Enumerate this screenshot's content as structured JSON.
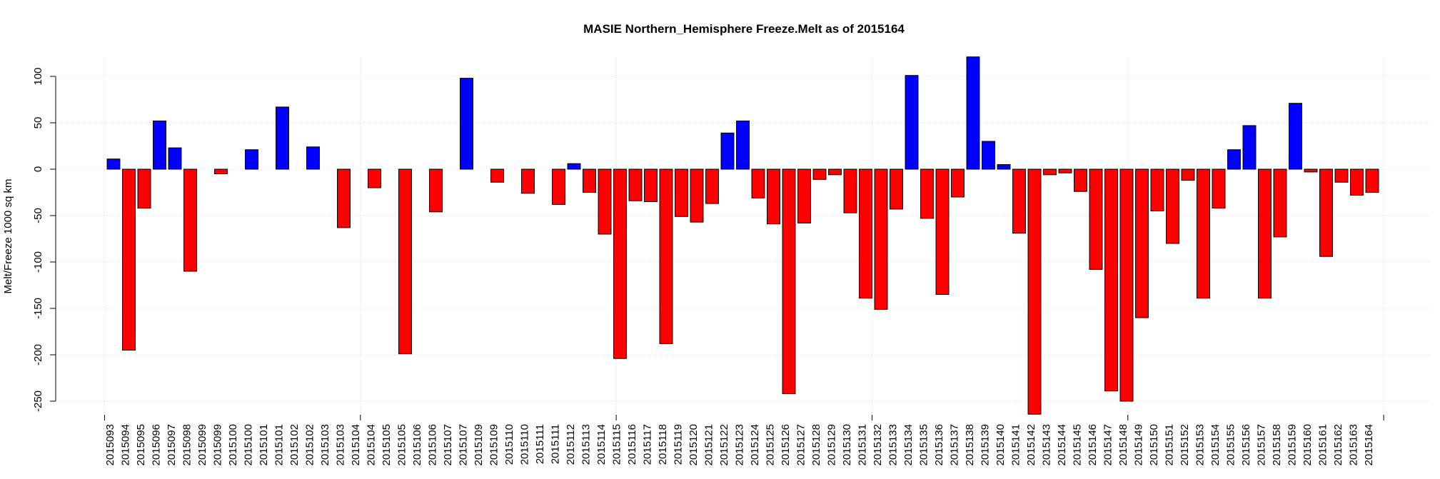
{
  "chart_data": {
    "type": "bar",
    "title": "MASIE Northern_Hemisphere Freeze.Melt as of 2015164",
    "y_label": "Melt/Freeze 1000 sq km",
    "categories": [
      "2015093",
      "2015094",
      "2015095",
      "2015096",
      "2015097",
      "2015098",
      "2015099",
      "2015099",
      "2015100",
      "2015100",
      "2015101",
      "2015101",
      "2015102",
      "2015102",
      "2015103",
      "2015103",
      "2015104",
      "2015104",
      "2015105",
      "2015105",
      "2015106",
      "2015106",
      "2015107",
      "2015107",
      "2015109",
      "2015109",
      "2015110",
      "2015110",
      "2015111",
      "2015111",
      "2015112",
      "2015113",
      "2015114",
      "2015115",
      "2015116",
      "2015117",
      "2015118",
      "2015119",
      "2015120",
      "2015121",
      "2015122",
      "2015123",
      "2015124",
      "2015125",
      "2015126",
      "2015127",
      "2015128",
      "2015129",
      "2015130",
      "2015131",
      "2015132",
      "2015133",
      "2015134",
      "2015135",
      "2015136",
      "2015137",
      "2015138",
      "2015139",
      "2015140",
      "2015141",
      "2015142",
      "2015143",
      "2015144",
      "2015145",
      "2015146",
      "2015147",
      "2015148",
      "2015149",
      "2015150",
      "2015151",
      "2015152",
      "2015153",
      "2015154",
      "2015155",
      "2015156",
      "2015157",
      "2015158",
      "2015159",
      "2015160",
      "2015161",
      "2015162",
      "2015163",
      "2015164"
    ],
    "values": [
      11,
      -195,
      -42,
      52,
      23,
      -110,
      0,
      -5,
      0,
      21,
      0,
      67,
      0,
      24,
      0,
      -63,
      0,
      -20,
      0,
      -199,
      0,
      -46,
      0,
      98,
      0,
      -14,
      0,
      -26,
      0,
      -38,
      6,
      -25,
      -70,
      -204,
      -34,
      -35,
      -188,
      -51,
      -57,
      -37,
      39,
      52,
      -31,
      -59,
      -242,
      -58,
      -11,
      -6,
      -47,
      -139,
      -151,
      -43,
      101,
      -53,
      -135,
      -30,
      121,
      30,
      5,
      -69,
      -264,
      -6,
      -4,
      -24,
      -108,
      -239,
      -250,
      -160,
      -45,
      -80,
      -12,
      -139,
      -42,
      21,
      47,
      -139,
      -73,
      71,
      -3,
      -94,
      -14,
      -28,
      -25
    ],
    "color_positive": "#0000ff",
    "color_negative": "#ff0000",
    "ylim": [
      -265,
      120
    ],
    "yticks": [
      -250,
      -200,
      -150,
      -100,
      -50,
      0,
      50,
      100
    ],
    "xticks": [
      0,
      20,
      40,
      60,
      80,
      100
    ],
    "grid": true
  }
}
